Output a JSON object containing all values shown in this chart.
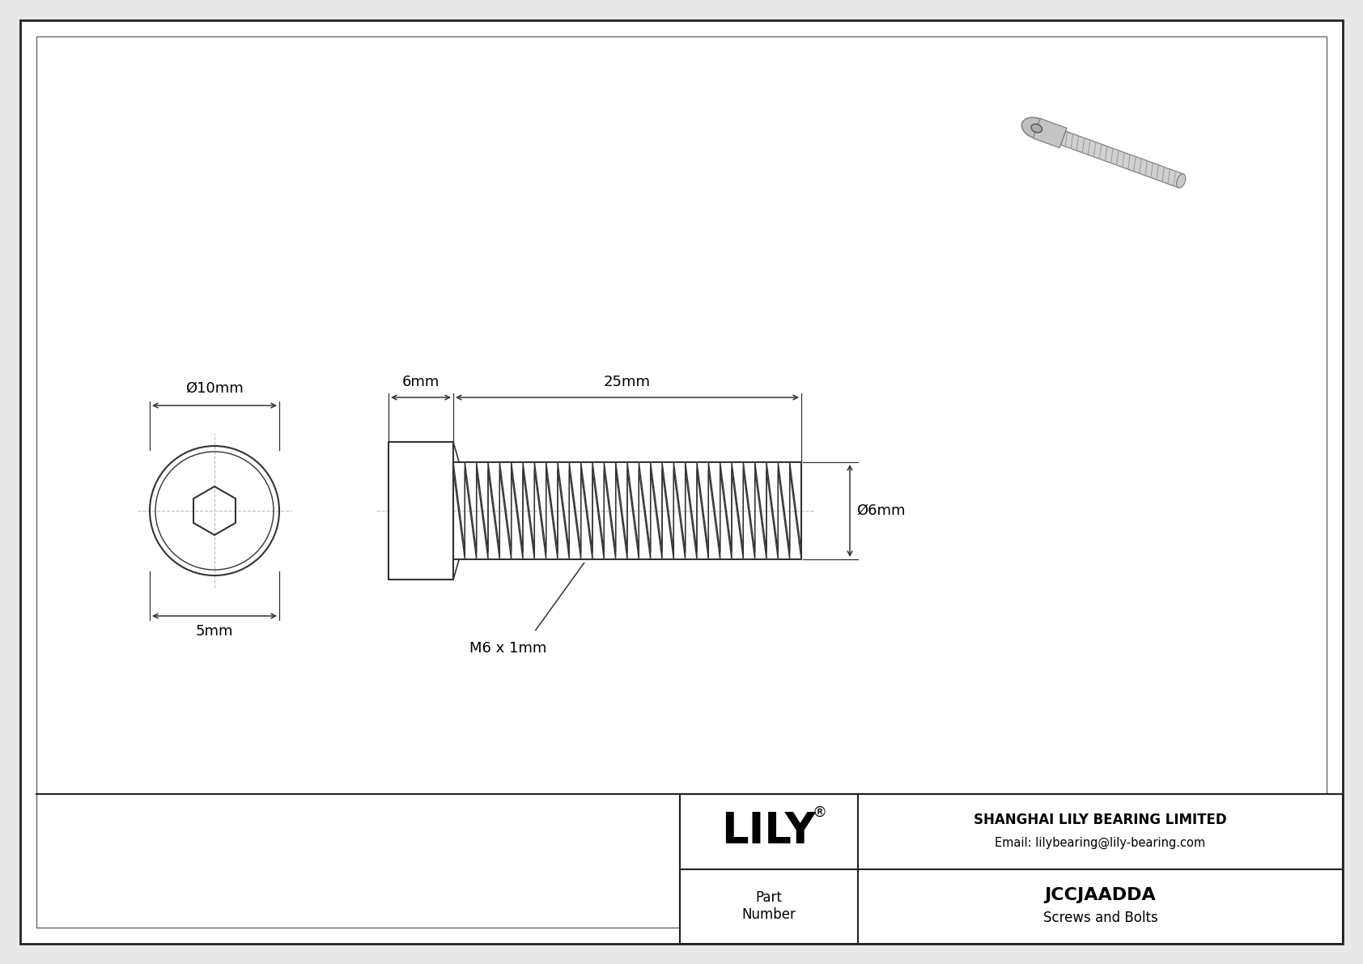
{
  "bg_color": "#e8e8e8",
  "drawing_bg": "#ffffff",
  "border_color": "#222222",
  "line_color": "#333333",
  "title": "JCCJAADDA",
  "subtitle": "Screws and Bolts",
  "company": "SHANGHAI LILY BEARING LIMITED",
  "email": "Email: lilybearing@lily-bearing.com",
  "logo": "LILY",
  "part_label": "Part\nNumber",
  "dim_10mm": "Ø10mm",
  "dim_5mm": "5mm",
  "dim_6mm_head": "6mm",
  "dim_25mm": "25mm",
  "dim_phi6mm": "Ø6mm",
  "dim_thread": "M6 x 1mm",
  "fig_w": 16.84,
  "fig_h": 11.91,
  "dpi": 100
}
